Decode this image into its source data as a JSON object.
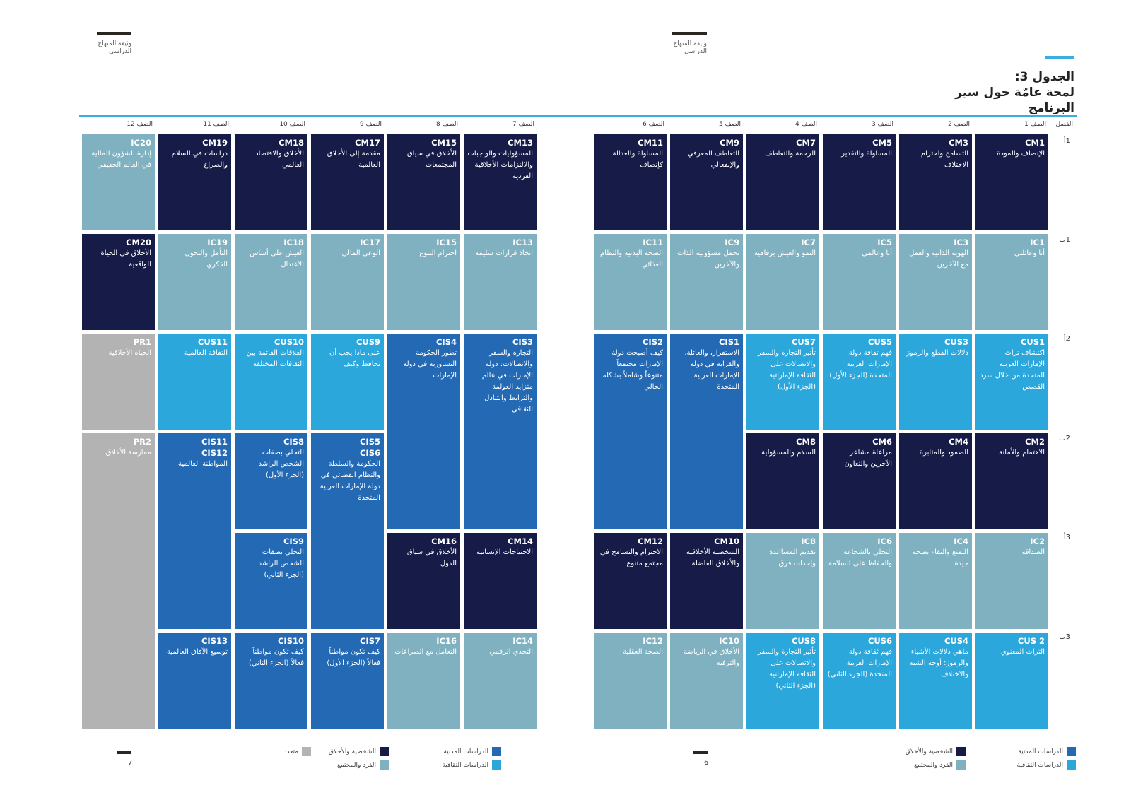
{
  "header": {
    "left_label": "وثيقة المنهاج\nالدراسي",
    "right_label": "وثيقة المنهاج\nالدراسي"
  },
  "title": "الجدول 3:\nلمحة عامّة حول سير\nالبرنامج",
  "row_label_header": "الفصل",
  "grades": {
    "g1": "الصف 1",
    "g2": "الصف 2",
    "g3": "الصف 3",
    "g4": "الصف 4",
    "g5": "الصف 5",
    "g6": "الصف 6",
    "g7": "الصف 7",
    "g8": "الصف 8",
    "g9": "الصف 9",
    "g10": "الصف 10",
    "g11": "الصف 11",
    "g12": "الصف 12"
  },
  "terms": {
    "t1a": "1أ",
    "t1b": "1ب",
    "t2a": "2أ",
    "t2b": "2ب",
    "t3a": "3أ",
    "t3b": "3ب"
  },
  "cells": {
    "CM1": {
      "code": "CM1",
      "name": "الإنصاف والمودة"
    },
    "CM3": {
      "code": "CM3",
      "name": "التسامح واحترام الاختلاف"
    },
    "CM5": {
      "code": "CM5",
      "name": "المساواة والتقدير"
    },
    "CM7": {
      "code": "CM7",
      "name": "الرحمة والتعاطف"
    },
    "CM9": {
      "code": "CM9",
      "name": "التعاطف المعرفي والإنفعالي"
    },
    "CM11": {
      "code": "CM11",
      "name": "المساواة والعدالة كإنصاف"
    },
    "IC1": {
      "code": "IC1",
      "name": "أنا وعائلتي"
    },
    "IC3": {
      "code": "IC3",
      "name": "الهوية الذاتية والعمل مع الآخرين"
    },
    "IC5": {
      "code": "IC5",
      "name": "أنا وعالمي"
    },
    "IC7": {
      "code": "IC7",
      "name": "النمو والعيش برفاهية"
    },
    "IC9": {
      "code": "IC9",
      "name": "تحمل مسؤولية الذات والآخرين"
    },
    "IC11": {
      "code": "IC11",
      "name": "الصحة البدنية والنظام الغذائي"
    },
    "CUS1": {
      "code": "CUS1",
      "name": "اكتشاف تراث الإمارات العربية المتحدة من خلال سرد القصص"
    },
    "CUS3": {
      "code": "CUS3",
      "name": "دلالات القطع والرموز"
    },
    "CUS5": {
      "code": "CUS5",
      "name": "فهم ثقافة دولة الإمارات العربية المتحدة (الجزء الأول)"
    },
    "CUS7": {
      "code": "CUS7",
      "name": "تأثير التجارة والسفر والاتصالات على الثقافة الإماراتية (الجزء الأول)"
    },
    "CIS1": {
      "code": "CIS1",
      "name": "الاستقرار، والعائلة، والقرابة في دولة الإمارات العربية المتحدة"
    },
    "CIS2": {
      "code": "CIS2",
      "name": "كيف أصبحت دولة الإمارات مجتمعاً متنوعاً وشاملاً بشكله الحالي"
    },
    "CM2": {
      "code": "CM2",
      "name": "الاهتمام والأمانة"
    },
    "CM4": {
      "code": "CM4",
      "name": "الصمود والمثابرة"
    },
    "CM6": {
      "code": "CM6",
      "name": "مراعاة مشاعر الآخرين والتعاون"
    },
    "CM8": {
      "code": "CM8",
      "name": "السلام والمسؤولية"
    },
    "IC2": {
      "code": "IC2",
      "name": "الصداقة"
    },
    "IC4": {
      "code": "IC4",
      "name": "التمتع والبقاء بصحة جيدة"
    },
    "IC6": {
      "code": "IC6",
      "name": "التحلي بالشجاعة والحفاظ على السلامة"
    },
    "IC8": {
      "code": "IC8",
      "name": "تقديم المساعدة وإحداث فرق"
    },
    "CM10": {
      "code": "CM10",
      "name": "الشخصية الأخلاقية والأخلاق الفاضلة"
    },
    "CM12": {
      "code": "CM12",
      "name": "الاحترام والتسامح في مجتمع متنوع"
    },
    "CUS2": {
      "code": "CUS 2",
      "name": "التراث المعنوي"
    },
    "CUS4": {
      "code": "CUS4",
      "name": "ماهي دلالات الأشياء والرموز: أوجه الشبه والاختلاف"
    },
    "CUS6": {
      "code": "CUS6",
      "name": "فهم ثقافة دولة الإمارات العربية المتحدة (الجزء الثاني)"
    },
    "CUS8": {
      "code": "CUS8",
      "name": "تأثير التجارة والسفر والاتصالات على الثقافة الإماراتية (الجزء الثاني)"
    },
    "IC10": {
      "code": "IC10",
      "name": "الأخلاق في الرياضة والترفيه"
    },
    "IC12": {
      "code": "IC12",
      "name": "الصحة العقلية"
    },
    "CM13": {
      "code": "CM13",
      "name": "المسؤوليات والواجبات والالتزامات الأخلاقية الفردية"
    },
    "CM15": {
      "code": "CM15",
      "name": "الأخلاق في سياق المجتمعات"
    },
    "CM17": {
      "code": "CM17",
      "name": "مقدمة إلى الأخلاق العالمية"
    },
    "CM18": {
      "code": "CM18",
      "name": "الأخلاق والاقتصاد العالمي"
    },
    "CM19": {
      "code": "CM19",
      "name": "دراسات في السلام والصراع"
    },
    "IC20": {
      "code": "IC20",
      "name": "إدارة الشؤون المالية في العالم الحقيقي"
    },
    "IC13": {
      "code": "IC13",
      "name": "اتخاذ قرارات سليمة"
    },
    "IC15": {
      "code": "IC15",
      "name": "احترام التنوع"
    },
    "IC17": {
      "code": "IC17",
      "name": "الوعي المالي"
    },
    "IC18": {
      "code": "IC18",
      "name": "العيش على أساس الاعتدال"
    },
    "IC19": {
      "code": "IC19",
      "name": "التأمل والتحول الفكري"
    },
    "CM20": {
      "code": "CM20",
      "name": "الأخلاق في الحياة الواقعية"
    },
    "CIS3": {
      "code": "CIS3",
      "name": "التجارة والسفر والاتصالات: دولة الإمارات في عالم متزايد العولمة والترابط والتبادل الثقافي"
    },
    "CIS4": {
      "code": "CIS4",
      "name": "تطور الحكومة التشاورية في دولة الإمارات"
    },
    "CUS9": {
      "code": "CUS9",
      "name": "على ماذا يجب أن نحافظ وكيف"
    },
    "CUS10": {
      "code": "CUS10",
      "name": "العلاقات القائمة بين الثقافات المختلفة"
    },
    "CUS11": {
      "code": "CUS11",
      "name": "الثقافة العالمية"
    },
    "PR1": {
      "code": "PR1",
      "name": "الحياة الأخلاقية"
    },
    "CIS5": {
      "code": "CIS5",
      "code2": "CIS6",
      "name": "الحكومة والسلطة والنظام القضائي في دولة الإمارات العربية المتحدة"
    },
    "CIS8": {
      "code": "CIS8",
      "name": "التحلي بصفات الشخص الراشد (الجزء الأول)"
    },
    "CIS11": {
      "code": "CIS11",
      "code2": "CIS12",
      "name": "المواطنة العالمية"
    },
    "PR2": {
      "code": "PR2",
      "name": "ممارسة الأخلاق"
    },
    "CIS9": {
      "code": "CIS9",
      "name": "التحلي بصفات الشخص الراشد (الجزء الثاني)"
    },
    "CM14": {
      "code": "CM14",
      "name": "الاحتياجات الإنسانية"
    },
    "CM16": {
      "code": "CM16",
      "name": "الأخلاق في سياق الدول"
    },
    "IC14": {
      "code": "IC14",
      "name": "التحدي الرقمي"
    },
    "IC16": {
      "code": "IC16",
      "name": "التعامل مع الصراعات"
    },
    "CIS7": {
      "code": "CIS7",
      "name": "كيف تكون مواطناً فعالاً (الجزء الأول)"
    },
    "CIS10": {
      "code": "CIS10",
      "name": "كيف تكون مواطناً فعالاً (الجزء الثاني)"
    },
    "CIS13": {
      "code": "CIS13",
      "name": "توسيع الآفاق العالمية"
    }
  },
  "legend": {
    "civic": "الدراسات المدنية",
    "character": "الشخصية والأخلاق",
    "cultural": "الدراسات الثقافية",
    "individual": "الفرد والمجتمع",
    "multi": "متعدد"
  },
  "page_numbers": {
    "left": "7",
    "right": "6"
  },
  "colors": {
    "dark": "#161c47",
    "sky": "#7fb1c0",
    "light": "#2ba7dc",
    "mid": "#2469b3",
    "gray": "#b3b3b3",
    "accent": "#3aaee0"
  }
}
